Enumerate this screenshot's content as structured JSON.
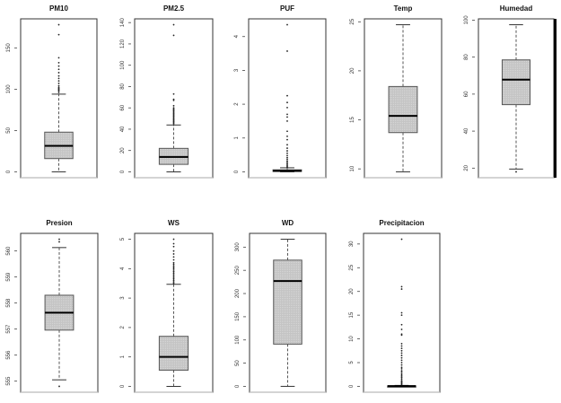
{
  "chart_data": [
    {
      "type": "box",
      "title": "PM10",
      "ticks": [
        0,
        50,
        100,
        150
      ],
      "whisker_low": 0,
      "q1": 16,
      "median": 31.5,
      "q3": 48,
      "whisker_high": 94,
      "outliers": [
        96,
        98,
        99,
        100,
        101,
        102,
        104,
        107,
        110,
        113,
        116,
        120,
        124,
        128,
        132,
        138,
        166,
        178
      ]
    },
    {
      "type": "box",
      "title": "PM2.5",
      "ticks": [
        0,
        20,
        40,
        60,
        80,
        100,
        120,
        140
      ],
      "whisker_low": 0,
      "q1": 7,
      "median": 14,
      "q3": 22,
      "whisker_high": 44,
      "outliers": [
        45,
        46,
        47,
        48,
        49,
        50,
        51,
        52,
        53,
        54,
        55,
        56,
        57,
        58,
        59,
        60,
        62,
        67,
        68,
        73,
        128,
        138
      ]
    },
    {
      "type": "box",
      "title": "PUF",
      "ticks": [
        0,
        1,
        2,
        3,
        4
      ],
      "whisker_low": 0,
      "q1": 0.01,
      "median": 0.03,
      "q3": 0.06,
      "whisker_high": 0.12,
      "outliers": [
        0.14,
        0.17,
        0.2,
        0.24,
        0.28,
        0.32,
        0.37,
        0.42,
        0.48,
        0.55,
        0.62,
        0.7,
        0.8,
        0.95,
        1.05,
        1.2,
        1.5,
        1.62,
        1.7,
        1.9,
        2.05,
        2.25,
        3.57,
        4.35
      ]
    },
    {
      "type": "box",
      "title": "Temp",
      "ticks": [
        10,
        15,
        20,
        25
      ],
      "whisker_low": 9.7,
      "q1": 13.7,
      "median": 15.4,
      "q3": 18.4,
      "whisker_high": 24.7,
      "outliers": []
    },
    {
      "type": "box",
      "title": "Humedad",
      "ticks": [
        20,
        40,
        60,
        80,
        100
      ],
      "whisker_low": 19.5,
      "q1": 54.3,
      "median": 67.8,
      "q3": 78.5,
      "whisker_high": 97.5,
      "outliers": [
        18
      ]
    },
    {
      "type": "box",
      "title": "Presion",
      "ticks": [
        555,
        556,
        557,
        558,
        559,
        560
      ],
      "whisker_low": 555.05,
      "q1": 556.96,
      "median": 557.63,
      "q3": 558.3,
      "whisker_high": 560.13,
      "outliers": [
        554.8,
        560.35,
        560.45
      ]
    },
    {
      "type": "box",
      "title": "WS",
      "ticks": [
        0,
        1,
        2,
        3,
        4,
        5
      ],
      "whisker_low": 0,
      "q1": 0.55,
      "median": 1.0,
      "q3": 1.7,
      "whisker_high": 3.47,
      "outliers": [
        3.5,
        3.55,
        3.6,
        3.65,
        3.7,
        3.75,
        3.8,
        3.85,
        3.9,
        3.95,
        4.0,
        4.05,
        4.1,
        4.15,
        4.2,
        4.3,
        4.4,
        4.5,
        4.6,
        4.75,
        4.85,
        5.0
      ]
    },
    {
      "type": "box",
      "title": "WD",
      "ticks": [
        0,
        50,
        100,
        150,
        200,
        250,
        300
      ],
      "whisker_low": 0,
      "q1": 91,
      "median": 227,
      "q3": 272,
      "whisker_high": 317,
      "outliers": []
    },
    {
      "type": "box",
      "title": "Precipitacion",
      "ticks": [
        0,
        5,
        10,
        15,
        20,
        25,
        30
      ],
      "whisker_low": 0,
      "q1": 0,
      "median": 0.05,
      "q3": 0.1,
      "whisker_high": 0.2,
      "outliers": [
        0.4,
        0.6,
        0.8,
        1,
        1.2,
        1.5,
        1.8,
        2,
        2.3,
        2.6,
        3,
        3.3,
        3.7,
        4,
        4.5,
        5,
        5.5,
        6,
        6.5,
        7,
        7.5,
        8,
        8.5,
        9,
        10.8,
        11,
        12,
        13,
        15,
        15.5,
        20.5,
        21,
        31
      ]
    }
  ]
}
